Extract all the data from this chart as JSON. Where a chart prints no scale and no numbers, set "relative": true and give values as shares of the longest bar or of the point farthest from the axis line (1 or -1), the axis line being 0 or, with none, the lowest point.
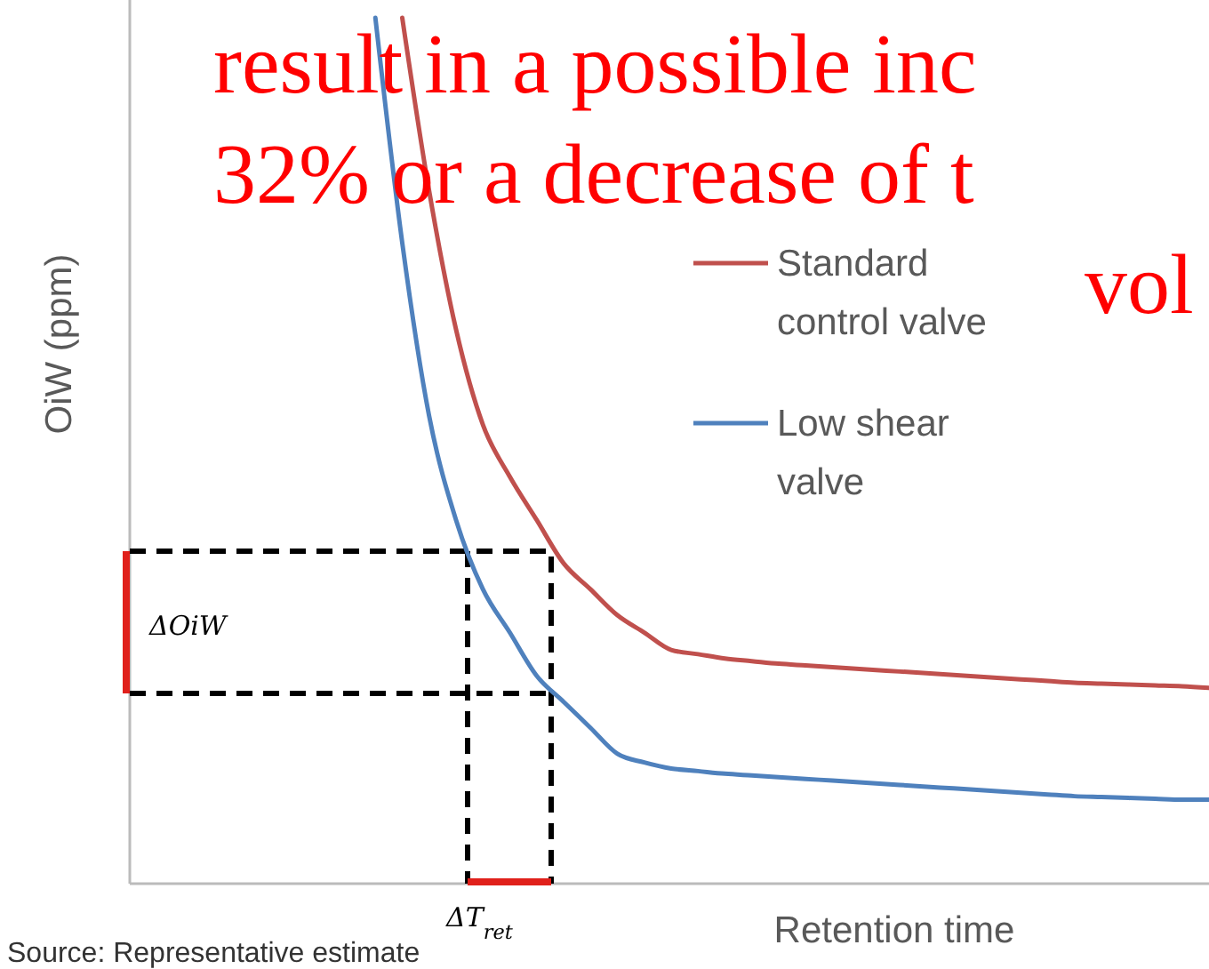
{
  "chart_data": {
    "type": "line",
    "relative": true,
    "xlabel": "Retention time",
    "ylabel": "OiW (ppm)",
    "legend": "top right",
    "marker": "none",
    "line_style": "solid",
    "categories": [
      null,
      null,
      null,
      null,
      null,
      null,
      null,
      null,
      null,
      null,
      null,
      null,
      null,
      null,
      null,
      null,
      null,
      null,
      null,
      null,
      null,
      null,
      null,
      null,
      null,
      null,
      null,
      null,
      null,
      null,
      null,
      null,
      null,
      null,
      null,
      null,
      null,
      null,
      null,
      null,
      null
    ],
    "series": [
      {
        "name": "Standard control valve",
        "color": "#c0504d",
        "values": [
          null,
          null,
          null,
          null,
          null,
          null,
          null,
          null,
          null,
          null,
          1.0,
          0.8,
          0.64,
          0.53,
          0.47,
          0.42,
          0.37,
          0.34,
          0.31,
          0.29,
          0.27,
          0.265,
          0.26,
          0.257,
          0.254,
          0.252,
          0.25,
          0.248,
          0.246,
          0.244,
          0.242,
          0.24,
          0.238,
          0.236,
          0.234,
          0.232,
          0.231,
          0.23,
          0.229,
          0.228,
          0.226
        ]
      },
      {
        "name": "Low shear valve",
        "color": "#4f81bd",
        "values": [
          null,
          null,
          null,
          null,
          null,
          null,
          null,
          null,
          null,
          1.0,
          0.74,
          0.54,
          0.42,
          0.34,
          0.29,
          0.24,
          0.21,
          0.18,
          0.15,
          0.14,
          0.133,
          0.13,
          0.127,
          0.125,
          0.123,
          0.121,
          0.119,
          0.117,
          0.115,
          0.113,
          0.111,
          0.109,
          0.107,
          0.105,
          0.103,
          0.101,
          0.1,
          0.099,
          0.098,
          0.097,
          0.097
        ]
      }
    ],
    "annotations": [
      "result in a possible inc",
      "32% or a decrease of t",
      "vol",
      "ΔOiW",
      "ΔT$_{ret}$",
      "Source: Representative estimate"
    ]
  }
}
